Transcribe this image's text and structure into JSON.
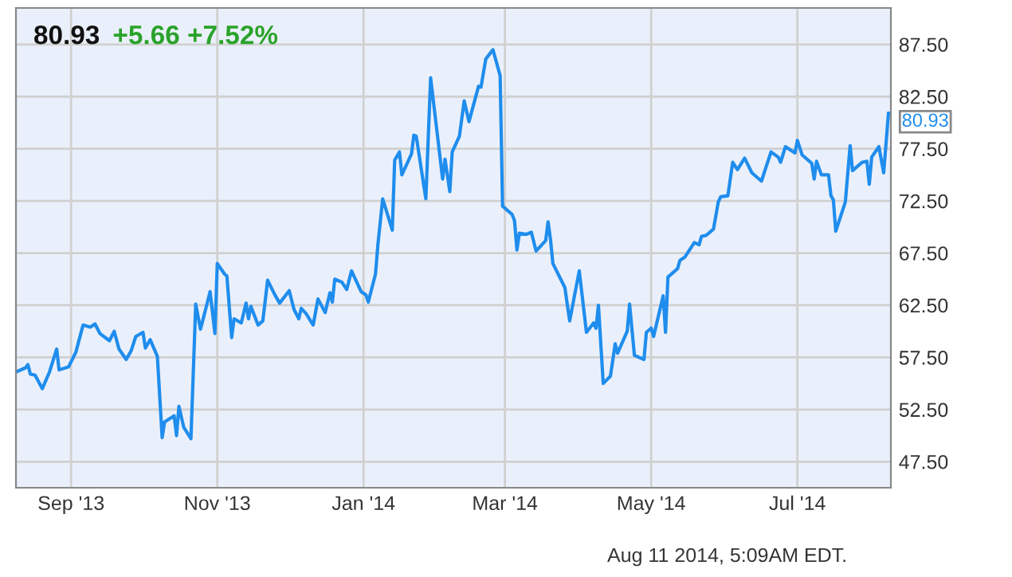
{
  "chart_data": {
    "type": "line",
    "title": "80.93",
    "subtitle": "+5.66 +7.52%",
    "annotations": [
      {
        "text": "80.93",
        "x": "2014-08-08",
        "y": 80.93
      },
      "Aug 11 2014, 5:09AM EDT."
    ],
    "x": [
      "2013-08-09",
      "2013-08-13",
      "2013-08-14",
      "2013-08-15",
      "2013-08-17",
      "2013-08-20",
      "2013-08-23",
      "2013-08-26",
      "2013-08-27",
      "2013-08-31",
      "2013-09-03",
      "2013-09-06",
      "2013-09-09",
      "2013-09-11",
      "2013-09-13",
      "2013-09-17",
      "2013-09-19",
      "2013-09-21",
      "2013-09-24",
      "2013-09-26",
      "2013-09-28",
      "2013-10-01",
      "2013-10-02",
      "2013-10-04",
      "2013-10-07",
      "2013-10-09",
      "2013-10-10",
      "2013-10-14",
      "2013-10-15",
      "2013-10-16",
      "2013-10-18",
      "2013-10-21",
      "2013-10-23",
      "2013-10-25",
      "2013-10-29",
      "2013-10-31",
      "2013-11-01",
      "2013-11-04",
      "2013-11-05",
      "2013-11-07",
      "2013-11-08",
      "2013-11-11",
      "2013-11-13",
      "2013-11-14",
      "2013-11-15",
      "2013-11-18",
      "2013-11-20",
      "2013-11-22",
      "2013-11-25",
      "2013-11-27",
      "2013-12-01",
      "2013-12-03",
      "2013-12-05",
      "2013-12-06",
      "2013-12-08",
      "2013-12-11",
      "2013-12-13",
      "2013-12-16",
      "2013-12-18",
      "2013-12-19",
      "2013-12-20",
      "2013-12-23",
      "2013-12-25",
      "2013-12-27",
      "2013-12-31",
      "2014-01-02",
      "2014-01-03",
      "2014-01-06",
      "2014-01-07",
      "2014-01-09",
      "2014-01-13",
      "2014-01-14",
      "2014-01-16",
      "2014-01-17",
      "2014-01-21",
      "2014-01-22",
      "2014-01-23",
      "2014-01-27",
      "2014-01-29",
      "2014-02-03",
      "2014-02-04",
      "2014-02-06",
      "2014-02-07",
      "2014-02-10",
      "2014-02-12",
      "2014-02-14",
      "2014-02-18",
      "2014-02-19",
      "2014-02-21",
      "2014-02-24",
      "2014-02-27",
      "2014-02-28",
      "2014-03-04",
      "2014-03-05",
      "2014-03-06",
      "2014-03-07",
      "2014-03-10",
      "2014-03-12",
      "2014-03-14",
      "2014-03-18",
      "2014-03-19",
      "2014-03-20",
      "2014-03-21",
      "2014-03-26",
      "2014-03-28",
      "2014-04-01",
      "2014-04-04",
      "2014-04-07",
      "2014-04-08",
      "2014-04-09",
      "2014-04-11",
      "2014-04-14",
      "2014-04-16",
      "2014-04-17",
      "2014-04-21",
      "2014-04-22",
      "2014-04-24",
      "2014-04-28",
      "2014-04-29",
      "2014-05-01",
      "2014-05-02",
      "2014-05-06",
      "2014-05-07",
      "2014-05-08",
      "2014-05-12",
      "2014-05-13",
      "2014-05-15",
      "2014-05-19",
      "2014-05-21",
      "2014-05-22",
      "2014-05-24",
      "2014-05-27",
      "2014-05-29",
      "2014-05-30",
      "2014-06-02",
      "2014-06-04",
      "2014-06-06",
      "2014-06-09",
      "2014-06-12",
      "2014-06-16",
      "2014-06-20",
      "2014-06-23",
      "2014-06-24",
      "2014-06-26",
      "2014-06-30",
      "2014-07-01",
      "2014-07-03",
      "2014-07-07",
      "2014-07-08",
      "2014-07-09",
      "2014-07-11",
      "2014-07-14",
      "2014-07-15",
      "2014-07-16",
      "2014-07-17",
      "2014-07-21",
      "2014-07-23",
      "2014-07-24",
      "2014-07-28",
      "2014-07-30",
      "2014-07-31",
      "2014-08-01",
      "2014-08-04",
      "2014-08-06",
      "2014-08-08"
    ],
    "series": [
      {
        "color": "#1f8ded",
        "values": [
          56.1,
          56.5,
          56.8,
          55.9,
          55.8,
          54.5,
          56.1,
          58.3,
          56.3,
          56.6,
          58.0,
          60.6,
          60.4,
          60.7,
          59.8,
          59.1,
          60.0,
          58.3,
          57.3,
          58.1,
          59.5,
          59.9,
          58.4,
          59.2,
          57.6,
          49.8,
          51.3,
          51.9,
          50.0,
          52.8,
          50.8,
          49.7,
          62.6,
          60.2,
          63.8,
          59.8,
          66.5,
          65.5,
          65.3,
          59.4,
          61.2,
          60.8,
          62.7,
          61.2,
          62.4,
          60.6,
          61.0,
          64.9,
          63.5,
          62.7,
          63.9,
          62.1,
          61.2,
          62.2,
          61.7,
          60.6,
          63.1,
          61.8,
          63.7,
          62.8,
          65.0,
          64.7,
          64.0,
          65.8,
          63.8,
          63.5,
          62.8,
          65.5,
          68.3,
          72.7,
          69.7,
          76.4,
          77.2,
          75.0,
          77.0,
          78.8,
          78.7,
          72.7,
          84.3,
          74.6,
          76.5,
          73.4,
          77.2,
          78.7,
          82.1,
          80.1,
          83.5,
          83.4,
          86.1,
          87.0,
          84.5,
          72.0,
          71.2,
          70.6,
          67.8,
          69.4,
          69.3,
          69.5,
          67.7,
          68.7,
          70.5,
          68.8,
          66.5,
          64.2,
          61.0,
          65.8,
          59.9,
          60.8,
          60.3,
          62.5,
          55.0,
          55.7,
          58.8,
          57.9,
          60.0,
          62.6,
          57.7,
          57.3,
          59.9,
          60.3,
          59.5,
          63.4,
          59.9,
          65.2,
          66.0,
          66.8,
          67.1,
          68.5,
          68.3,
          69.1,
          69.2,
          69.8,
          72.4,
          72.9,
          73.0,
          76.2,
          75.5,
          76.6,
          75.2,
          74.4,
          77.2,
          76.7,
          76.2,
          77.7,
          77.1,
          78.3,
          76.9,
          76.1,
          74.6,
          76.3,
          75.0,
          75.0,
          73.0,
          72.6,
          69.6,
          72.4,
          77.8,
          75.4,
          76.2,
          76.3,
          74.1,
          76.7,
          77.7,
          75.2,
          80.93
        ]
      }
    ],
    "xlim": [
      "2013-08-09",
      "2014-08-09"
    ],
    "xticks": [
      {
        "value": "2013-09-01",
        "label": "Sep '13"
      },
      {
        "value": "2013-11-01",
        "label": "Nov '13"
      },
      {
        "value": "2014-01-01",
        "label": "Jan '14"
      },
      {
        "value": "2014-03-01",
        "label": "Mar '14"
      },
      {
        "value": "2014-05-01",
        "label": "May '14"
      },
      {
        "value": "2014-07-01",
        "label": "Jul '14"
      }
    ],
    "ylim": [
      45,
      91
    ],
    "yticks": [
      {
        "value": 47.5,
        "label": "47.50"
      },
      {
        "value": 52.5,
        "label": "52.50"
      },
      {
        "value": 57.5,
        "label": "57.50"
      },
      {
        "value": 62.5,
        "label": "62.50"
      },
      {
        "value": 67.5,
        "label": "67.50"
      },
      {
        "value": 72.5,
        "label": "72.50"
      },
      {
        "value": 77.5,
        "label": "77.50"
      },
      {
        "value": 82.5,
        "label": "82.50"
      },
      {
        "value": 87.5,
        "label": "87.50"
      }
    ],
    "grid": true,
    "legend": false
  }
}
